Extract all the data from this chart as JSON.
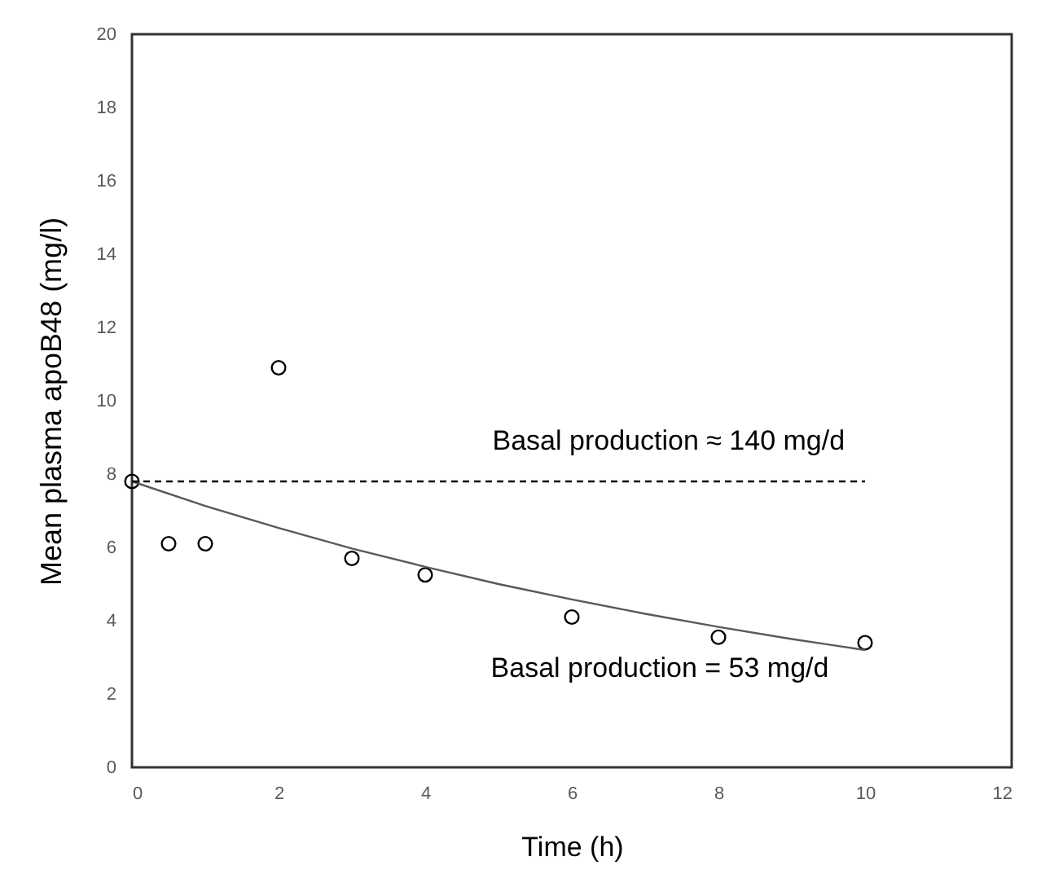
{
  "chart_data": {
    "type": "scatter",
    "xlabel": "Time (h)",
    "ylabel": "Mean plasma apoB48 (mg/l)",
    "xlim": [
      0,
      12
    ],
    "xticks": [
      0,
      2,
      4,
      6,
      8,
      10,
      12
    ],
    "ylim": [
      0,
      20
    ],
    "yticks": [
      0,
      2,
      4,
      6,
      8,
      10,
      12,
      14,
      16,
      18,
      20
    ],
    "grid": false,
    "series": [
      {
        "color": "#000000",
        "marker": "circle",
        "x": [
          0,
          0.5,
          1,
          2,
          3,
          4,
          6,
          8,
          10
        ],
        "values": [
          7.8,
          6.1,
          6.1,
          10.9,
          5.7,
          5.25,
          4.1,
          3.55,
          3.4
        ]
      },
      {
        "type": "line",
        "color": "#595959",
        "line_style": "solid",
        "x": [
          0,
          1,
          2,
          3,
          4,
          5,
          6,
          7,
          8,
          9,
          10
        ],
        "values": [
          7.8,
          7.13,
          6.53,
          5.97,
          5.47,
          5.0,
          4.58,
          4.19,
          3.83,
          3.5,
          3.2
        ]
      },
      {
        "type": "line",
        "color": "#000000",
        "line_style": "dashed",
        "x": [
          0,
          10
        ],
        "values": [
          7.8,
          7.8
        ]
      }
    ],
    "annotations": [
      "Basal production ≈ 140 mg/d",
      "Basal production = 53 mg/d"
    ]
  }
}
